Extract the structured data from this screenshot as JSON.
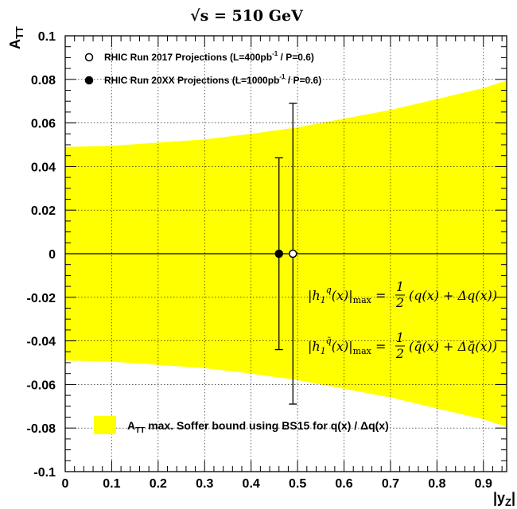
{
  "chart_data": {
    "type": "scatter",
    "title": "√s = 510 GeV",
    "xlabel": "|y",
    "xlabel_sub": "Z",
    "xlabel_end": "|",
    "ylabel": "A",
    "ylabel_sub": "TT",
    "xlim": [
      0,
      0.95
    ],
    "ylim": [
      -0.1,
      0.1
    ],
    "x_ticks": [
      0,
      0.1,
      0.2,
      0.3,
      0.4,
      0.5,
      0.6,
      0.7,
      0.8,
      0.9
    ],
    "x_tick_labels": [
      "0",
      "0.1",
      "0.2",
      "0.3",
      "0.4",
      "0.5",
      "0.6",
      "0.7",
      "0.8",
      "0.9"
    ],
    "y_ticks": [
      -0.1,
      -0.08,
      -0.06,
      -0.04,
      -0.02,
      0,
      0.02,
      0.04,
      0.06,
      0.08,
      0.1
    ],
    "y_tick_labels": [
      "-0.1",
      "-0.08",
      "-0.06",
      "-0.04",
      "-0.02",
      "0",
      "0.02",
      "0.04",
      "0.06",
      "0.08",
      "0.1"
    ],
    "band": {
      "name": "A_TT max. Soffer bound using BS15 for q(x) / Δq(x)",
      "label_main": "A",
      "label_sub": "TT",
      "label_rest": " max. Soffer bound using BS15 for q(x) / Δq(x)",
      "color": "#ffff00",
      "x": [
        0,
        0.1,
        0.2,
        0.3,
        0.4,
        0.5,
        0.6,
        0.7,
        0.8,
        0.9,
        0.95
      ],
      "upper": [
        0.049,
        0.0495,
        0.051,
        0.0525,
        0.055,
        0.058,
        0.062,
        0.066,
        0.071,
        0.076,
        0.0795
      ],
      "lower": [
        -0.049,
        -0.0495,
        -0.051,
        -0.0525,
        -0.055,
        -0.058,
        -0.062,
        -0.066,
        -0.071,
        -0.076,
        -0.0795
      ]
    },
    "series": [
      {
        "name": "RHIC Run 2017 Projections (L=400pb⁻¹ / P=0.6)",
        "legend_pre": "RHIC Run 2017 Projections (L=400pb",
        "legend_sup": "-1",
        "legend_post": " / P=0.6)",
        "marker": "open-circle",
        "x": [
          0.49
        ],
        "y": [
          0.0
        ],
        "err": [
          0.069
        ]
      },
      {
        "name": "RHIC Run 20XX Projections (L=1000pb⁻¹ / P=0.6)",
        "legend_pre": "RHIC Run 20XX Projections (L=1000pb",
        "legend_sup": "-1",
        "legend_post": " / P=0.6)",
        "marker": "filled-circle",
        "x": [
          0.46
        ],
        "y": [
          0.0
        ],
        "err": [
          0.044
        ]
      }
    ],
    "annotations": [
      "|h₁ᵠ(x)|ₘₐₓ = ½ (q(x) + Δq(x))",
      "|h₁ᵠ̄(x)|ₘₐₓ = ½ (q̄(x) + Δq̄(x))"
    ],
    "grid": true,
    "zero_line": true,
    "legend_position": "top-left"
  }
}
